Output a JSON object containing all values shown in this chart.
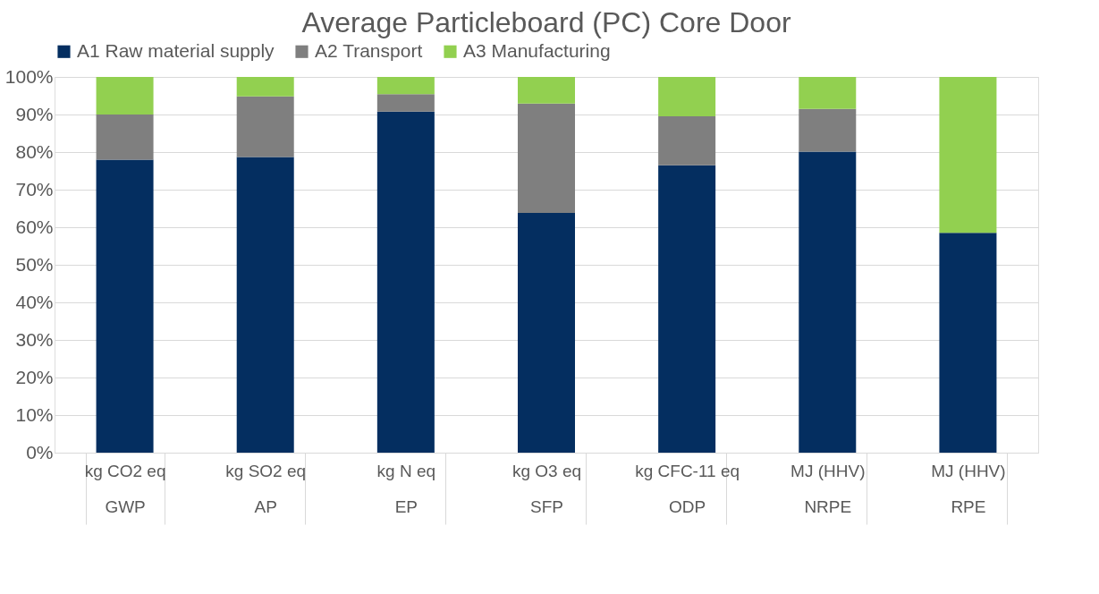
{
  "chart_data": {
    "type": "bar",
    "title": "Average Particleboard (PC) Core Door",
    "stacked": true,
    "categories": [
      "kg CO2 eq\nGWP",
      "kg SO2 eq\nAP",
      "kg N eq\nEP",
      "kg O3 eq\nSFP",
      "kg CFC-11 eq\nODP",
      "MJ (HHV)\nNRPE",
      "MJ (HHV)\nRPE"
    ],
    "series": [
      {
        "name": "A1 Raw material supply",
        "color": "#042e60",
        "values": [
          78,
          78.7,
          90.8,
          63.8,
          76.5,
          80.1,
          58.5
        ]
      },
      {
        "name": "A2 Transport",
        "color": "#7f7f7f",
        "values": [
          12,
          16.1,
          4.6,
          29.1,
          13,
          11.4,
          0
        ]
      },
      {
        "name": "A3 Manufacturing",
        "color": "#92d050",
        "values": [
          10,
          5.2,
          4.6,
          7.1,
          10.5,
          8.5,
          41.5
        ]
      }
    ],
    "ylim": [
      0,
      100
    ],
    "yticks": [
      {
        "value": 0,
        "label": "0%"
      },
      {
        "value": 10,
        "label": "10%"
      },
      {
        "value": 20,
        "label": "20%"
      },
      {
        "value": 30,
        "label": "30%"
      },
      {
        "value": 40,
        "label": "40%"
      },
      {
        "value": 50,
        "label": "50%"
      },
      {
        "value": 60,
        "label": "60%"
      },
      {
        "value": 70,
        "label": "70%"
      },
      {
        "value": 80,
        "label": "80%"
      },
      {
        "value": 90,
        "label": "90%"
      },
      {
        "value": 100,
        "label": "100%"
      }
    ],
    "grid": "y",
    "legend": "top"
  }
}
